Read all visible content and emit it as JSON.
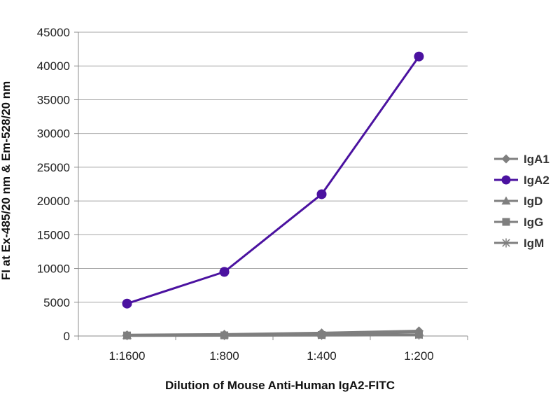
{
  "chart_data": {
    "type": "line",
    "title": "",
    "xlabel": "Dilution of Mouse Anti-Human IgA2-FITC",
    "ylabel": "FI at Ex-485/20 nm & Em-528/20 nm",
    "categories": [
      "1:1600",
      "1:800",
      "1:400",
      "1:200"
    ],
    "ylim": [
      0,
      45000
    ],
    "yticks": [
      0,
      5000,
      10000,
      15000,
      20000,
      25000,
      30000,
      35000,
      40000,
      45000
    ],
    "grid": "horizontal",
    "legend": "right",
    "series": [
      {
        "name": "IgA1",
        "values": [
          150,
          250,
          450,
          750
        ],
        "color": "#7f7f7f",
        "marker": "diamond"
      },
      {
        "name": "IgA2",
        "values": [
          4800,
          9500,
          21000,
          41400
        ],
        "color": "#4b12a0",
        "marker": "circle"
      },
      {
        "name": "IgD",
        "values": [
          100,
          200,
          350,
          600
        ],
        "color": "#7f7f7f",
        "marker": "triangle"
      },
      {
        "name": "IgG",
        "values": [
          80,
          100,
          150,
          200
        ],
        "color": "#7f7f7f",
        "marker": "square"
      },
      {
        "name": "IgM",
        "values": [
          50,
          80,
          100,
          150
        ],
        "color": "#7f7f7f",
        "marker": "star"
      }
    ]
  }
}
